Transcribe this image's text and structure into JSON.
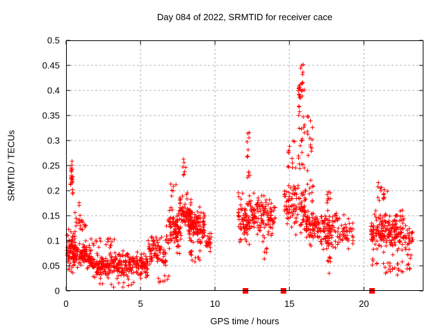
{
  "chart_data": {
    "type": "scatter",
    "title": "Day 084 of 2022, SRMTID for receiver cace",
    "xlabel": "GPS time / hours",
    "ylabel": "SRMTID / TECUs",
    "xlim": [
      0,
      24
    ],
    "ylim": [
      0,
      0.5
    ],
    "xticks": [
      0,
      5,
      10,
      15,
      20
    ],
    "yticks": [
      0,
      0.05,
      0.1,
      0.15,
      0.2,
      0.25,
      0.3,
      0.35,
      0.4,
      0.45,
      0.5
    ],
    "grid": true,
    "grid_color": "#b3b3b3",
    "point_color": "#ff0000",
    "marker": "plus",
    "gap_marker_shape": "filled-square",
    "gap_markers_x_hours": [
      12.05,
      14.6,
      20.55
    ],
    "gap_markers_y": 0,
    "seed": 42,
    "clusters": [
      {
        "x": [
          0.05,
          0.6
        ],
        "y": [
          0.025,
          0.14
        ],
        "n": 70,
        "dist": "g"
      },
      {
        "x": [
          0.28,
          0.5
        ],
        "y": [
          0.17,
          0.268
        ],
        "n": 20,
        "dist": "g"
      },
      {
        "x": [
          0.3,
          0.45
        ],
        "y": [
          0.19,
          0.225
        ],
        "n": 3,
        "dist": "u"
      },
      {
        "x": [
          0.55,
          1.05
        ],
        "y": [
          0.11,
          0.168
        ],
        "n": 14,
        "dist": "g"
      },
      {
        "x": [
          0.85,
          0.95
        ],
        "y": [
          0.17,
          0.178
        ],
        "n": 2,
        "dist": "u"
      },
      {
        "x": [
          0.5,
          1.7
        ],
        "y": [
          0.03,
          0.11
        ],
        "n": 110,
        "dist": "g"
      },
      {
        "x": [
          1.0,
          1.35
        ],
        "y": [
          0.11,
          0.15
        ],
        "n": 10,
        "dist": "g"
      },
      {
        "x": [
          1.7,
          5.5
        ],
        "y": [
          0.018,
          0.085
        ],
        "n": 300,
        "dist": "g"
      },
      {
        "x": [
          1.7,
          3.3
        ],
        "y": [
          0.085,
          0.105
        ],
        "n": 18,
        "dist": "u"
      },
      {
        "x": [
          2.2,
          4.6
        ],
        "y": [
          0.006,
          0.018
        ],
        "n": 10,
        "dist": "u"
      },
      {
        "x": [
          5.5,
          6.7
        ],
        "y": [
          0.035,
          0.125
        ],
        "n": 80,
        "dist": "g"
      },
      {
        "x": [
          6.2,
          7.0
        ],
        "y": [
          0.015,
          0.035
        ],
        "n": 8,
        "dist": "u"
      },
      {
        "x": [
          6.7,
          7.7
        ],
        "y": [
          0.06,
          0.185
        ],
        "n": 90,
        "dist": "g"
      },
      {
        "x": [
          6.9,
          7.4
        ],
        "y": [
          0.185,
          0.225
        ],
        "n": 6,
        "dist": "u"
      },
      {
        "x": [
          7.6,
          8.4
        ],
        "y": [
          0.1,
          0.215
        ],
        "n": 70,
        "dist": "g"
      },
      {
        "x": [
          7.8,
          8.05
        ],
        "y": [
          0.22,
          0.265
        ],
        "n": 7,
        "dist": "u"
      },
      {
        "x": [
          8.2,
          9.35
        ],
        "y": [
          0.08,
          0.175
        ],
        "n": 120,
        "dist": "g"
      },
      {
        "x": [
          8.3,
          9.0
        ],
        "y": [
          0.055,
          0.08
        ],
        "n": 12,
        "dist": "u"
      },
      {
        "x": [
          9.35,
          9.75
        ],
        "y": [
          0.06,
          0.135
        ],
        "n": 22,
        "dist": "g"
      },
      {
        "x": [
          11.55,
          12.35
        ],
        "y": [
          0.075,
          0.215
        ],
        "n": 75,
        "dist": "g"
      },
      {
        "x": [
          12.15,
          12.35
        ],
        "y": [
          0.225,
          0.32
        ],
        "n": 12,
        "dist": "u"
      },
      {
        "x": [
          12.35,
          13.45
        ],
        "y": [
          0.085,
          0.215
        ],
        "n": 85,
        "dist": "g"
      },
      {
        "x": [
          13.2,
          13.5
        ],
        "y": [
          0.06,
          0.085
        ],
        "n": 6,
        "dist": "u"
      },
      {
        "x": [
          13.5,
          14.05
        ],
        "y": [
          0.095,
          0.2
        ],
        "n": 40,
        "dist": "g"
      },
      {
        "x": [
          14.65,
          15.5
        ],
        "y": [
          0.1,
          0.235
        ],
        "n": 65,
        "dist": "g"
      },
      {
        "x": [
          14.8,
          15.45
        ],
        "y": [
          0.24,
          0.315
        ],
        "n": 12,
        "dist": "u"
      },
      {
        "x": [
          15.6,
          16.0
        ],
        "y": [
          0.36,
          0.43
        ],
        "n": 22,
        "dist": "g"
      },
      {
        "x": [
          15.75,
          15.95
        ],
        "y": [
          0.43,
          0.457
        ],
        "n": 5,
        "dist": "u"
      },
      {
        "x": [
          15.6,
          16.05
        ],
        "y": [
          0.23,
          0.36
        ],
        "n": 20,
        "dist": "u"
      },
      {
        "x": [
          15.55,
          16.1
        ],
        "y": [
          0.1,
          0.23
        ],
        "n": 45,
        "dist": "g"
      },
      {
        "x": [
          16.15,
          16.55
        ],
        "y": [
          0.27,
          0.35
        ],
        "n": 13,
        "dist": "u"
      },
      {
        "x": [
          16.1,
          18.3
        ],
        "y": [
          0.075,
          0.175
        ],
        "n": 170,
        "dist": "g"
      },
      {
        "x": [
          17.4,
          17.8
        ],
        "y": [
          0.175,
          0.2
        ],
        "n": 8,
        "dist": "u"
      },
      {
        "x": [
          16.2,
          16.6
        ],
        "y": [
          0.175,
          0.24
        ],
        "n": 10,
        "dist": "u"
      },
      {
        "x": [
          17.55,
          17.85
        ],
        "y": [
          0.035,
          0.07
        ],
        "n": 7,
        "dist": "u"
      },
      {
        "x": [
          18.3,
          19.3
        ],
        "y": [
          0.07,
          0.16
        ],
        "n": 45,
        "dist": "g"
      },
      {
        "x": [
          20.45,
          22.7
        ],
        "y": [
          0.065,
          0.175
        ],
        "n": 200,
        "dist": "g"
      },
      {
        "x": [
          20.9,
          21.6
        ],
        "y": [
          0.175,
          0.225
        ],
        "n": 14,
        "dist": "u"
      },
      {
        "x": [
          21.3,
          23.1
        ],
        "y": [
          0.03,
          0.065
        ],
        "n": 25,
        "dist": "g"
      },
      {
        "x": [
          22.7,
          23.3
        ],
        "y": [
          0.06,
          0.14
        ],
        "n": 30,
        "dist": "g"
      },
      {
        "x": [
          20.5,
          20.9
        ],
        "y": [
          0.05,
          0.065
        ],
        "n": 5,
        "dist": "u"
      }
    ]
  }
}
